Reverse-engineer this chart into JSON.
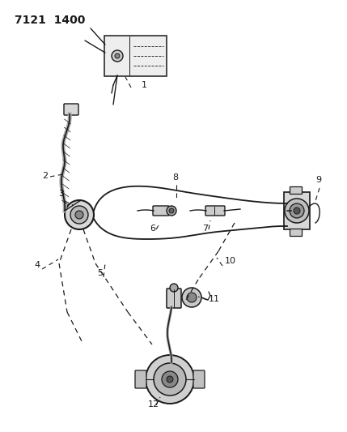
{
  "title": "7121  1400",
  "bg_color": "#ffffff",
  "line_color": "#1a1a1a",
  "figsize": [
    4.29,
    5.33
  ],
  "dpi": 100
}
